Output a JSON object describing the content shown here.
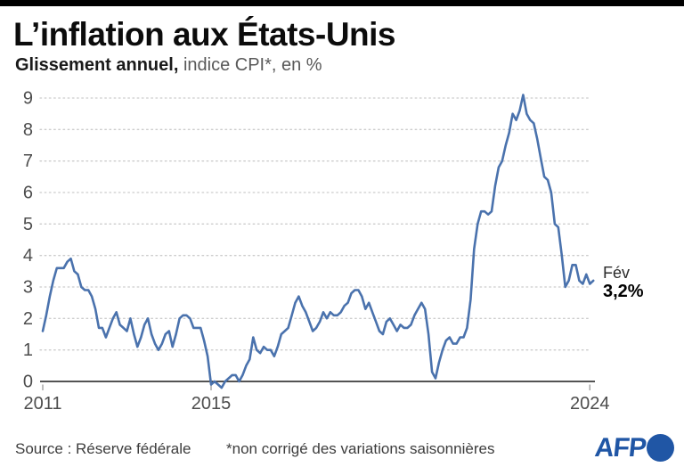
{
  "page": {
    "top_bar_color": "#000000",
    "background": "#ffffff"
  },
  "chart_data": {
    "type": "line",
    "title": "L’inflation aux États-Unis",
    "subtitle_bold": "Glissement annuel,",
    "subtitle_regular": " indice CPI*, en %",
    "ylabel": "%",
    "ylim": [
      0,
      9.5
    ],
    "y_ticks": [
      0,
      1,
      2,
      3,
      4,
      5,
      6,
      7,
      8,
      9
    ],
    "x_tick_labels": [
      "2011",
      "2015",
      "2024"
    ],
    "grid": "dotted horizontal gridlines, solid zero axis",
    "legend": "none",
    "line_color": "#4a72ad",
    "frequency": "monthly",
    "start": "2011-01",
    "end": "2024-02",
    "values": [
      1.6,
      2.1,
      2.7,
      3.2,
      3.6,
      3.6,
      3.6,
      3.8,
      3.9,
      3.5,
      3.4,
      3.0,
      2.9,
      2.9,
      2.7,
      2.3,
      1.7,
      1.7,
      1.4,
      1.7,
      2.0,
      2.2,
      1.8,
      1.7,
      1.6,
      2.0,
      1.5,
      1.1,
      1.4,
      1.8,
      2.0,
      1.5,
      1.2,
      1.0,
      1.2,
      1.5,
      1.6,
      1.1,
      1.5,
      2.0,
      2.1,
      2.1,
      2.0,
      1.7,
      1.7,
      1.7,
      1.3,
      0.8,
      -0.1,
      0.0,
      -0.1,
      -0.2,
      0.0,
      0.1,
      0.2,
      0.2,
      0.0,
      0.2,
      0.5,
      0.7,
      1.4,
      1.0,
      0.9,
      1.1,
      1.0,
      1.0,
      0.8,
      1.1,
      1.5,
      1.6,
      1.7,
      2.1,
      2.5,
      2.7,
      2.4,
      2.2,
      1.9,
      1.6,
      1.7,
      1.9,
      2.2,
      2.0,
      2.2,
      2.1,
      2.1,
      2.2,
      2.4,
      2.5,
      2.8,
      2.9,
      2.9,
      2.7,
      2.3,
      2.5,
      2.2,
      1.9,
      1.6,
      1.5,
      1.9,
      2.0,
      1.8,
      1.6,
      1.8,
      1.7,
      1.7,
      1.8,
      2.1,
      2.3,
      2.5,
      2.3,
      1.5,
      0.3,
      0.1,
      0.6,
      1.0,
      1.3,
      1.4,
      1.2,
      1.2,
      1.4,
      1.4,
      1.7,
      2.6,
      4.2,
      5.0,
      5.4,
      5.4,
      5.3,
      5.4,
      6.2,
      6.8,
      7.0,
      7.5,
      7.9,
      8.5,
      8.3,
      8.6,
      9.1,
      8.5,
      8.3,
      8.2,
      7.7,
      7.1,
      6.5,
      6.4,
      6.0,
      5.0,
      4.9,
      4.0,
      3.0,
      3.2,
      3.7,
      3.7,
      3.2,
      3.1,
      3.4,
      3.1,
      3.2
    ],
    "annotation": {
      "month_label": "Fév",
      "value_label": "3,2%",
      "value": 3.2
    }
  },
  "footer": {
    "source": "Source : Réserve fédérale",
    "note": "*non corrigé des variations saisonnières",
    "logo": {
      "text": "AFP",
      "color": "#2056a5"
    }
  }
}
